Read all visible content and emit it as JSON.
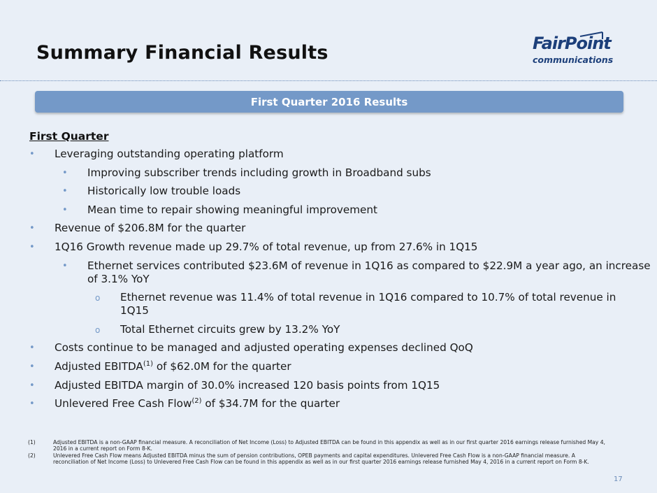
{
  "title": "Summary Financial Results",
  "logo": {
    "line1": "FairPoint",
    "line2": "communications"
  },
  "banner": "First Quarter 2016 Results",
  "section_heading": "First Quarter",
  "bullets": [
    {
      "level": 1,
      "marker": "•",
      "text": "Leveraging outstanding operating platform"
    },
    {
      "level": 2,
      "marker": "•",
      "text": "Improving subscriber trends including growth in Broadband subs"
    },
    {
      "level": 2,
      "marker": "•",
      "text": "Historically low trouble loads"
    },
    {
      "level": 2,
      "marker": "•",
      "text": "Mean time to repair showing meaningful improvement"
    },
    {
      "level": 1,
      "marker": "•",
      "text": "Revenue of $206.8M for the quarter"
    },
    {
      "level": 1,
      "marker": "•",
      "text": "1Q16 Growth revenue made up 29.7% of total revenue, up from 27.6% in 1Q15"
    },
    {
      "level": 2,
      "marker": "•",
      "text": "Ethernet services contributed $23.6M of revenue in 1Q16 as compared to $22.9M a year ago, an increase of 3.1% YoY"
    },
    {
      "level": 3,
      "marker": "o",
      "text": "Ethernet revenue was 11.4% of total revenue in 1Q16 compared to 10.7% of total revenue in 1Q15"
    },
    {
      "level": 3,
      "marker": "o",
      "text": "Total Ethernet circuits grew by 13.2% YoY"
    },
    {
      "level": 1,
      "marker": "•",
      "text": "Costs continue to be managed and adjusted operating expenses declined QoQ"
    },
    {
      "level": 1,
      "marker": "•",
      "pre": "Adjusted EBITDA",
      "sup": "(1)",
      "post": " of $62.0M for the quarter"
    },
    {
      "level": 1,
      "marker": "•",
      "text": "Adjusted EBITDA margin of 30.0% increased 120 basis points from 1Q15"
    },
    {
      "level": 1,
      "marker": "•",
      "pre": "Unlevered Free Cash Flow",
      "sup": "(2)",
      "post": " of $34.7M for the quarter"
    }
  ],
  "footnotes": [
    {
      "num": "(1)",
      "text": "Adjusted EBITDA is a non-GAAP financial measure. A reconciliation of Net Income (Loss) to Adjusted EBITDA can be found in this appendix as well as in our first quarter 2016 earnings release furnished May 4, 2016 in a current report on Form 8-K."
    },
    {
      "num": "(2)",
      "text": "Unlevered Free Cash Flow means Adjusted EBITDA minus the sum of pension contributions, OPEB payments and capital expenditures. Unlevered Free Cash Flow is a non-GAAP financial measure. A reconciliation of Net Income (Loss) to Unlevered Free Cash Flow can be found in this appendix as well as in our first quarter 2016 earnings release furnished May 4, 2016 in a current report on Form 8-K."
    }
  ],
  "page_number": "17",
  "colors": {
    "background": "#e9eff7",
    "accent": "#7499c8",
    "logo_blue": "#1c3f7a"
  }
}
